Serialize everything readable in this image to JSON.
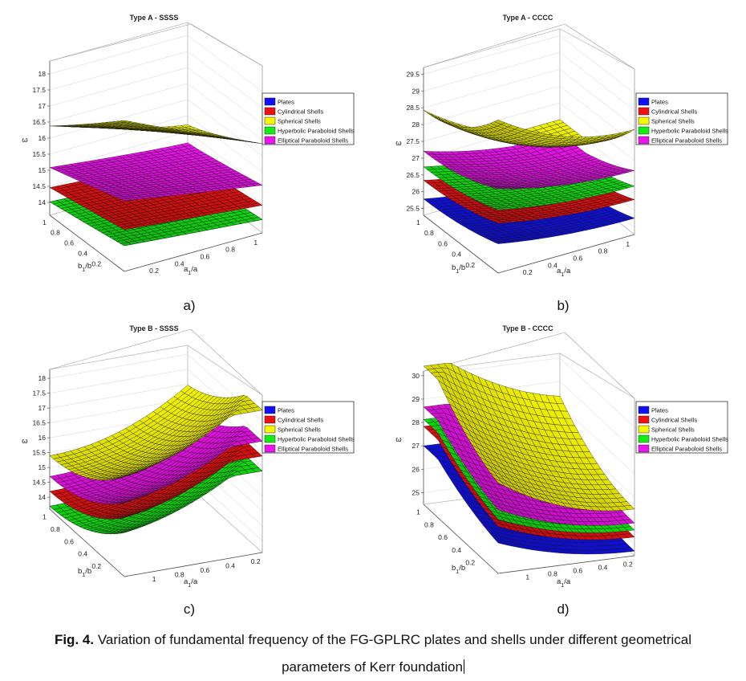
{
  "figure": {
    "caption_label": "Fig. 4.",
    "caption_line1": "Variation of fundamental frequency of the FG-GPLRC plates and shells under different geometrical",
    "caption_line2": "parameters of Kerr foundation"
  },
  "legend": [
    "Plates",
    "Cylindrical Shells",
    "Spherical Shells",
    "Hyperbolic Paraboloid Shells",
    "Elliptical Paraboloid Shells"
  ],
  "colors": {
    "Plates": "#1010f0",
    "Cylindrical Shells": "#ee1111",
    "Spherical Shells": "#f6f600",
    "Hyperbolic Paraboloid Shells": "#11ee11",
    "Elliptical Paraboloid Shells": "#f011f0"
  },
  "chart_data": [
    {
      "type": "surface",
      "subplot_label": "a)",
      "title": "Type A - SSSS",
      "zlabel": "ω",
      "xlabel": "a1/a",
      "ylabel": "b1/b",
      "x_range": [
        0.1,
        1
      ],
      "y_range": [
        0.1,
        1
      ],
      "zlim": [
        13.6,
        18.4
      ],
      "z_ticks": [
        "14",
        "14.5",
        "15",
        "15.5",
        "16",
        "16.5",
        "17",
        "17.5",
        "18"
      ],
      "x_ticks": [
        "0.2",
        "0.4",
        "0.6",
        "0.8",
        "1"
      ],
      "y_ticks": [
        "0.2",
        "0.4",
        "0.6",
        "0.8",
        "1"
      ],
      "series": [
        {
          "name": "Plates",
          "z_min": 13.7,
          "z_max": 14.4
        },
        {
          "name": "Hyperbolic Paraboloid Shells",
          "z_min": 13.7,
          "z_max": 14.4
        },
        {
          "name": "Cylindrical Shells",
          "z_min": 14.1,
          "z_max": 14.9
        },
        {
          "name": "Elliptical Paraboloid Shells",
          "z_min": 14.5,
          "z_max": 15.8
        },
        {
          "name": "Spherical Shells",
          "z_min": 14.8,
          "z_max": 18.3
        }
      ]
    },
    {
      "type": "surface",
      "subplot_label": "b)",
      "title": "Type A - CCCC",
      "zlabel": "ω",
      "xlabel": "a1/a",
      "ylabel": "b1/b",
      "x_range": [
        0.1,
        1
      ],
      "y_range": [
        0.1,
        1
      ],
      "zlim": [
        25.3,
        29.7
      ],
      "z_ticks": [
        "25.5",
        "26",
        "26.5",
        "27",
        "27.5",
        "28",
        "28.5",
        "29",
        "29.5"
      ],
      "x_ticks": [
        "0.2",
        "0.4",
        "0.6",
        "0.8",
        "1"
      ],
      "y_ticks": [
        "0.2",
        "0.4",
        "0.6",
        "0.8",
        "1"
      ],
      "series": [
        {
          "name": "Plates",
          "z_min": 25.4,
          "z_max": 26.1
        },
        {
          "name": "Cylindrical Shells",
          "z_min": 25.9,
          "z_max": 26.7
        },
        {
          "name": "Hyperbolic Paraboloid Shells",
          "z_min": 26.3,
          "z_max": 27.1
        },
        {
          "name": "Elliptical Paraboloid Shells",
          "z_min": 26.6,
          "z_max": 27.7
        },
        {
          "name": "Spherical Shells",
          "z_min": 27.0,
          "z_max": 29.6
        }
      ]
    },
    {
      "type": "surface",
      "subplot_label": "c)",
      "title": "Type B - SSSS",
      "zlabel": "ω",
      "xlabel": "a1/a",
      "ylabel": "b1/b",
      "x_range": [
        0.1,
        1
      ],
      "y_range": [
        0.1,
        1
      ],
      "zlim": [
        13.6,
        18.3
      ],
      "z_ticks": [
        "14",
        "14.5",
        "15",
        "15.5",
        "16",
        "16.5",
        "17",
        "17.5",
        "18"
      ],
      "x_ticks": [
        "1",
        "0.8",
        "0.6",
        "0.4",
        "0.2"
      ],
      "y_ticks": [
        "0.2",
        "0.4",
        "0.6",
        "0.8",
        "1"
      ],
      "series": [
        {
          "name": "Plates",
          "z_min": 13.7,
          "z_max": 16.0
        },
        {
          "name": "Hyperbolic Paraboloid Shells",
          "z_min": 13.7,
          "z_max": 16.0
        },
        {
          "name": "Cylindrical Shells",
          "z_min": 14.2,
          "z_max": 16.5
        },
        {
          "name": "Elliptical Paraboloid Shells",
          "z_min": 14.7,
          "z_max": 17.0
        },
        {
          "name": "Spherical Shells",
          "z_min": 15.4,
          "z_max": 18.0
        }
      ]
    },
    {
      "type": "surface",
      "subplot_label": "d)",
      "title": "Type B - CCCC",
      "zlabel": "ω",
      "xlabel": "a1/a",
      "ylabel": "b1/b",
      "x_range": [
        0.1,
        1
      ],
      "y_range": [
        0.1,
        1
      ],
      "zlim": [
        24.5,
        30.2
      ],
      "z_ticks": [
        "25",
        "26",
        "27",
        "28",
        "29",
        "30"
      ],
      "x_ticks": [
        "1",
        "0.8",
        "0.6",
        "0.4",
        "0.2"
      ],
      "y_ticks": [
        "0.2",
        "0.4",
        "0.6",
        "0.8",
        "1"
      ],
      "series": [
        {
          "name": "Plates",
          "z_min": 24.7,
          "z_max": 26.7
        },
        {
          "name": "Cylindrical Shells",
          "z_min": 25.3,
          "z_max": 27.5
        },
        {
          "name": "Hyperbolic Paraboloid Shells",
          "z_min": 25.6,
          "z_max": 27.8
        },
        {
          "name": "Elliptical Paraboloid Shells",
          "z_min": 25.9,
          "z_max": 28.3
        },
        {
          "name": "Spherical Shells",
          "z_min": 26.5,
          "z_max": 29.9
        }
      ]
    }
  ]
}
